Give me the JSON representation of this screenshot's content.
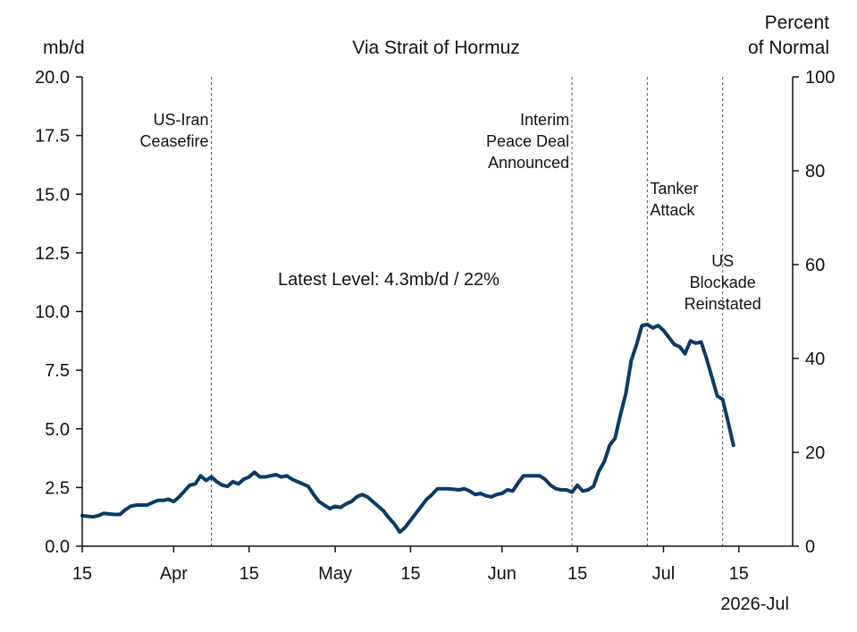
{
  "chart_data": {
    "type": "line",
    "title": "Via Strait of Hormuz",
    "left_axis": {
      "unit": "mb/d",
      "ylim": [
        0,
        20
      ],
      "ticks": [
        "0.0",
        "2.5",
        "5.0",
        "7.5",
        "10.0",
        "12.5",
        "15.0",
        "17.5",
        "20.0"
      ]
    },
    "right_axis": {
      "unit_lines": [
        "Percent",
        "of Normal"
      ],
      "ylim": [
        0,
        100
      ],
      "ticks": [
        "0",
        "20",
        "40",
        "60",
        "80",
        "100"
      ]
    },
    "x_axis": {
      "start": "2026-03-15",
      "end": "2026-07-25",
      "ticks": [
        {
          "date": "2026-03-15",
          "label": "15"
        },
        {
          "date": "2026-04-01",
          "label": "Apr"
        },
        {
          "date": "2026-04-15",
          "label": "15"
        },
        {
          "date": "2026-05-01",
          "label": "May"
        },
        {
          "date": "2026-05-15",
          "label": "15"
        },
        {
          "date": "2026-06-01",
          "label": "Jun"
        },
        {
          "date": "2026-06-15",
          "label": "15"
        },
        {
          "date": "2026-07-01",
          "label": "Jul"
        },
        {
          "date": "2026-07-15",
          "label": "15"
        }
      ],
      "corner_label": "2026-Jul"
    },
    "annotation": "Latest Level: 4.3mb/d / 22%",
    "events": [
      {
        "date": "2026-04-08",
        "lines": [
          "US-Iran",
          "Ceasefire"
        ],
        "align": "left-of-line"
      },
      {
        "date": "2026-06-14",
        "lines": [
          "Interim",
          "Peace Deal",
          "Announced"
        ],
        "align": "left-of-line"
      },
      {
        "date": "2026-06-28",
        "lines": [
          "Tanker",
          "Attack"
        ],
        "align": "right-of-line"
      },
      {
        "date": "2026-07-12",
        "lines": [
          "US",
          "Blockade",
          "Reinstated"
        ],
        "align": "centered"
      }
    ],
    "series": [
      {
        "color": "#0b3a66",
        "points": [
          [
            "2026-03-15",
            1.3
          ],
          [
            "2026-03-17",
            1.25
          ],
          [
            "2026-03-18",
            1.3
          ],
          [
            "2026-03-19",
            1.4
          ],
          [
            "2026-03-21",
            1.35
          ],
          [
            "2026-03-22",
            1.35
          ],
          [
            "2026-03-23",
            1.55
          ],
          [
            "2026-03-24",
            1.7
          ],
          [
            "2026-03-25",
            1.75
          ],
          [
            "2026-03-27",
            1.75
          ],
          [
            "2026-03-28",
            1.85
          ],
          [
            "2026-03-29",
            1.95
          ],
          [
            "2026-03-30",
            1.95
          ],
          [
            "2026-03-31",
            2.0
          ],
          [
            "2026-04-01",
            1.9
          ],
          [
            "2026-04-02",
            2.1
          ],
          [
            "2026-04-03",
            2.35
          ],
          [
            "2026-04-04",
            2.6
          ],
          [
            "2026-04-05",
            2.65
          ],
          [
            "2026-04-06",
            3.0
          ],
          [
            "2026-04-07",
            2.8
          ],
          [
            "2026-04-08",
            2.95
          ],
          [
            "2026-04-09",
            2.75
          ],
          [
            "2026-04-10",
            2.6
          ],
          [
            "2026-04-11",
            2.55
          ],
          [
            "2026-04-12",
            2.75
          ],
          [
            "2026-04-13",
            2.65
          ],
          [
            "2026-04-14",
            2.85
          ],
          [
            "2026-04-15",
            2.95
          ],
          [
            "2026-04-16",
            3.15
          ],
          [
            "2026-04-17",
            2.95
          ],
          [
            "2026-04-18",
            2.95
          ],
          [
            "2026-04-19",
            3.0
          ],
          [
            "2026-04-20",
            3.05
          ],
          [
            "2026-04-21",
            2.95
          ],
          [
            "2026-04-22",
            3.0
          ],
          [
            "2026-04-23",
            2.85
          ],
          [
            "2026-04-24",
            2.75
          ],
          [
            "2026-04-25",
            2.65
          ],
          [
            "2026-04-26",
            2.55
          ],
          [
            "2026-04-27",
            2.2
          ],
          [
            "2026-04-28",
            1.9
          ],
          [
            "2026-04-29",
            1.75
          ],
          [
            "2026-04-30",
            1.6
          ],
          [
            "2026-05-01",
            1.7
          ],
          [
            "2026-05-02",
            1.65
          ],
          [
            "2026-05-03",
            1.8
          ],
          [
            "2026-05-04",
            1.9
          ],
          [
            "2026-05-05",
            2.1
          ],
          [
            "2026-05-06",
            2.2
          ],
          [
            "2026-05-07",
            2.1
          ],
          [
            "2026-05-08",
            1.9
          ],
          [
            "2026-05-09",
            1.7
          ],
          [
            "2026-05-10",
            1.5
          ],
          [
            "2026-05-11",
            1.2
          ],
          [
            "2026-05-12",
            0.95
          ],
          [
            "2026-05-13",
            0.6
          ],
          [
            "2026-05-14",
            0.8
          ],
          [
            "2026-05-15",
            1.1
          ],
          [
            "2026-05-16",
            1.4
          ],
          [
            "2026-05-17",
            1.7
          ],
          [
            "2026-05-18",
            2.0
          ],
          [
            "2026-05-19",
            2.2
          ],
          [
            "2026-05-20",
            2.45
          ],
          [
            "2026-05-22",
            2.45
          ],
          [
            "2026-05-24",
            2.4
          ],
          [
            "2026-05-25",
            2.45
          ],
          [
            "2026-05-26",
            2.35
          ],
          [
            "2026-05-27",
            2.2
          ],
          [
            "2026-05-28",
            2.25
          ],
          [
            "2026-05-29",
            2.15
          ],
          [
            "2026-05-30",
            2.1
          ],
          [
            "2026-05-31",
            2.2
          ],
          [
            "2026-06-01",
            2.25
          ],
          [
            "2026-06-02",
            2.4
          ],
          [
            "2026-06-03",
            2.35
          ],
          [
            "2026-06-04",
            2.7
          ],
          [
            "2026-06-05",
            3.0
          ],
          [
            "2026-06-07",
            3.0
          ],
          [
            "2026-06-08",
            3.0
          ],
          [
            "2026-06-09",
            2.85
          ],
          [
            "2026-06-10",
            2.6
          ],
          [
            "2026-06-11",
            2.45
          ],
          [
            "2026-06-12",
            2.4
          ],
          [
            "2026-06-13",
            2.4
          ],
          [
            "2026-06-14",
            2.3
          ],
          [
            "2026-06-15",
            2.6
          ],
          [
            "2026-06-16",
            2.35
          ],
          [
            "2026-06-17",
            2.4
          ],
          [
            "2026-06-18",
            2.55
          ],
          [
            "2026-06-19",
            3.2
          ],
          [
            "2026-06-20",
            3.6
          ],
          [
            "2026-06-21",
            4.3
          ],
          [
            "2026-06-22",
            4.6
          ],
          [
            "2026-06-23",
            5.6
          ],
          [
            "2026-06-24",
            6.5
          ],
          [
            "2026-06-25",
            7.9
          ],
          [
            "2026-06-26",
            8.6
          ],
          [
            "2026-06-27",
            9.4
          ],
          [
            "2026-06-28",
            9.45
          ],
          [
            "2026-06-29",
            9.3
          ],
          [
            "2026-06-30",
            9.4
          ],
          [
            "2026-07-01",
            9.2
          ],
          [
            "2026-07-02",
            8.9
          ],
          [
            "2026-07-03",
            8.6
          ],
          [
            "2026-07-04",
            8.5
          ],
          [
            "2026-07-05",
            8.2
          ],
          [
            "2026-07-06",
            8.75
          ],
          [
            "2026-07-07",
            8.65
          ],
          [
            "2026-07-08",
            8.7
          ],
          [
            "2026-07-09",
            8.0
          ],
          [
            "2026-07-10",
            7.2
          ],
          [
            "2026-07-11",
            6.4
          ],
          [
            "2026-07-12",
            6.25
          ],
          [
            "2026-07-13",
            5.3
          ],
          [
            "2026-07-14",
            4.3
          ]
        ]
      }
    ]
  }
}
